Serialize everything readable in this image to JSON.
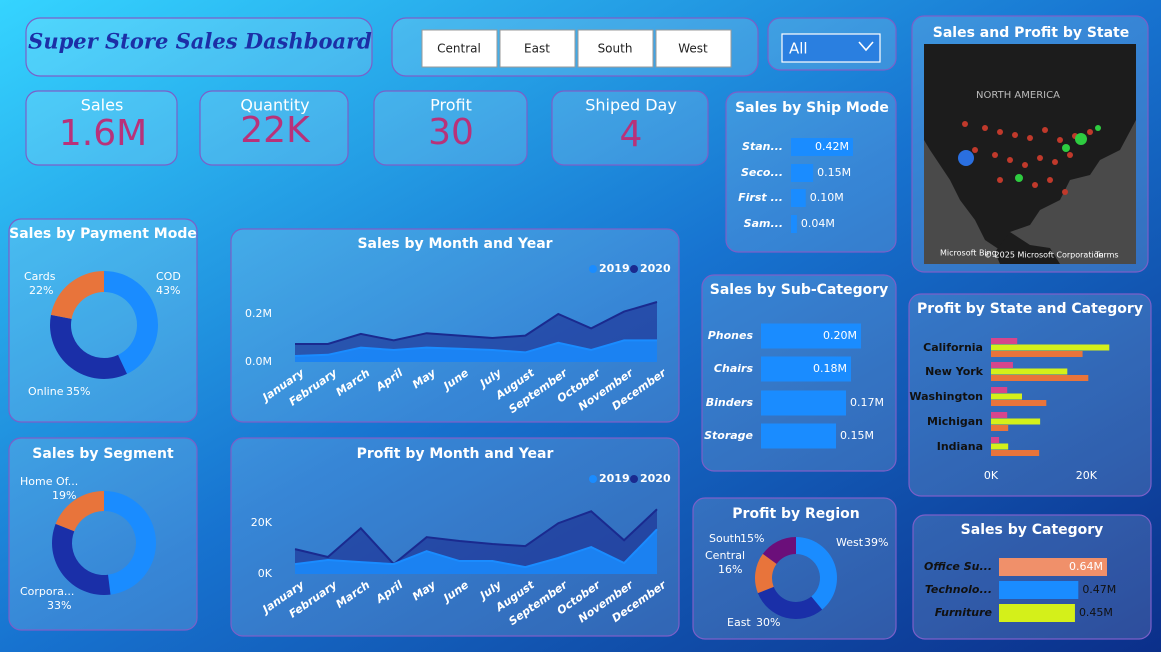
{
  "header": {
    "title": "Super Store Sales Dashboard"
  },
  "slicer": {
    "options": [
      "Central",
      "East",
      "South",
      "West"
    ],
    "dropdown": "All"
  },
  "kpis": [
    {
      "label": "Sales",
      "value": "1.6M"
    },
    {
      "label": "Quantity",
      "value": "22K"
    },
    {
      "label": "Profit",
      "value": "30"
    },
    {
      "label": "Shiped Day",
      "value": "4"
    }
  ],
  "map": {
    "title": "Sales and Profit by State",
    "region_label": "NORTH AMERICA",
    "provider": "Microsoft Bing",
    "copyright": "© 2025 Microsoft Corporation",
    "terms": "Terms"
  },
  "chart_data": [
    {
      "type": "donut",
      "title": "Sales by Payment Mode",
      "categories": [
        "COD",
        "Online",
        "Cards"
      ],
      "values": [
        43,
        35,
        22
      ],
      "value_labels": [
        "43%",
        "35%",
        "22%"
      ],
      "colors": [
        "#1a8cff",
        "#1a2fa8",
        "#e8743b"
      ]
    },
    {
      "type": "donut",
      "title": "Sales by Segment",
      "categories": [
        null,
        "Corpora...",
        "Home Of..."
      ],
      "values": [
        48,
        33,
        19
      ],
      "value_labels": [
        null,
        "33%",
        "19%"
      ],
      "colors": [
        "#1a8cff",
        "#1a2fa8",
        "#e8743b"
      ]
    },
    {
      "type": "donut",
      "title": "Profit by Region",
      "categories": [
        "West",
        "East",
        "Central",
        "South"
      ],
      "values": [
        39,
        30,
        16,
        15
      ],
      "value_labels": [
        "39%",
        "30%",
        "16%",
        "15%"
      ],
      "colors": [
        "#1a8cff",
        "#1a2fa8",
        "#e8743b",
        "#6b0f7a"
      ]
    },
    {
      "type": "area",
      "title": "Sales by Month and Year",
      "categories": [
        "January",
        "February",
        "March",
        "April",
        "May",
        "June",
        "July",
        "August",
        "September",
        "October",
        "November",
        "December"
      ],
      "series": [
        {
          "name": "2019",
          "color": "#1a8cff",
          "values": [
            25000,
            30000,
            60000,
            50000,
            60000,
            55000,
            50000,
            40000,
            80000,
            50000,
            90000,
            90000
          ]
        },
        {
          "name": "2020",
          "color": "#1a2a8f",
          "values": [
            75000,
            75000,
            117000,
            90000,
            120000,
            110000,
            100000,
            110000,
            200000,
            140000,
            210000,
            250000
          ]
        }
      ],
      "ylim": [
        0,
        250000
      ],
      "yticks": [
        {
          "value": 0,
          "label": "0.0M"
        },
        {
          "value": 200000,
          "label": "0.2M"
        }
      ]
    },
    {
      "type": "area",
      "title": "Profit by Month and Year",
      "categories": [
        "January",
        "February",
        "March",
        "April",
        "May",
        "June",
        "July",
        "August",
        "September",
        "October",
        "November",
        "December"
      ],
      "series": [
        {
          "name": "2019",
          "color": "#1a8cff",
          "values": [
            3900,
            5500,
            4700,
            3900,
            9000,
            5100,
            5100,
            2700,
            6300,
            10600,
            4300,
            17600
          ]
        },
        {
          "name": "2020",
          "color": "#1a2a8f",
          "values": [
            9800,
            6700,
            18000,
            3900,
            14500,
            13000,
            11800,
            11000,
            20000,
            24700,
            13300,
            25500
          ]
        }
      ],
      "ylim": [
        0,
        26000
      ],
      "yticks": [
        {
          "value": 0,
          "label": "0K"
        },
        {
          "value": 20000,
          "label": "20K"
        }
      ]
    },
    {
      "type": "bar",
      "title": "Sales by Ship Mode",
      "categories": [
        "Stan...",
        "Seco...",
        "First ...",
        "Sam..."
      ],
      "values": [
        420000,
        150000,
        100000,
        40000
      ],
      "value_labels": [
        "0.42M",
        "0.15M",
        "0.10M",
        "0.04M"
      ],
      "color": "#1a8cff"
    },
    {
      "type": "bar",
      "title": "Sales by Sub-Category",
      "categories": [
        "Phones",
        "Chairs",
        "Binders",
        "Storage"
      ],
      "values": [
        200000,
        180000,
        170000,
        150000
      ],
      "value_labels": [
        "0.20M",
        "0.18M",
        "0.17M",
        "0.15M"
      ],
      "color": "#1a8cff"
    },
    {
      "type": "bar",
      "title": "Sales by Category",
      "categories": [
        "Office Su...",
        "Technolo...",
        "Furniture"
      ],
      "values": [
        640000,
        470000,
        450000
      ],
      "value_labels": [
        "0.64M",
        "0.47M",
        "0.45M"
      ],
      "colors": [
        "#f0906a",
        "#1a8cff",
        "#d4f01a"
      ]
    },
    {
      "type": "grouped_bar",
      "title": "Profit by State and Category",
      "categories": [
        "California",
        "New York",
        "Washington",
        "Michigan",
        "Indiana"
      ],
      "series": [
        {
          "color": "#d6458c",
          "values": [
            5500,
            4600,
            3400,
            3400,
            1700
          ]
        },
        {
          "color": "#d4f01a",
          "values": [
            24800,
            16000,
            6500,
            10300,
            3600
          ]
        },
        {
          "color": "#e8743b",
          "values": [
            19200,
            20400,
            11600,
            3600,
            10100
          ]
        }
      ],
      "xlim": [
        0,
        26000
      ],
      "xticks": [
        {
          "value": 0,
          "label": "0K"
        },
        {
          "value": 20000,
          "label": "20K"
        }
      ]
    }
  ]
}
